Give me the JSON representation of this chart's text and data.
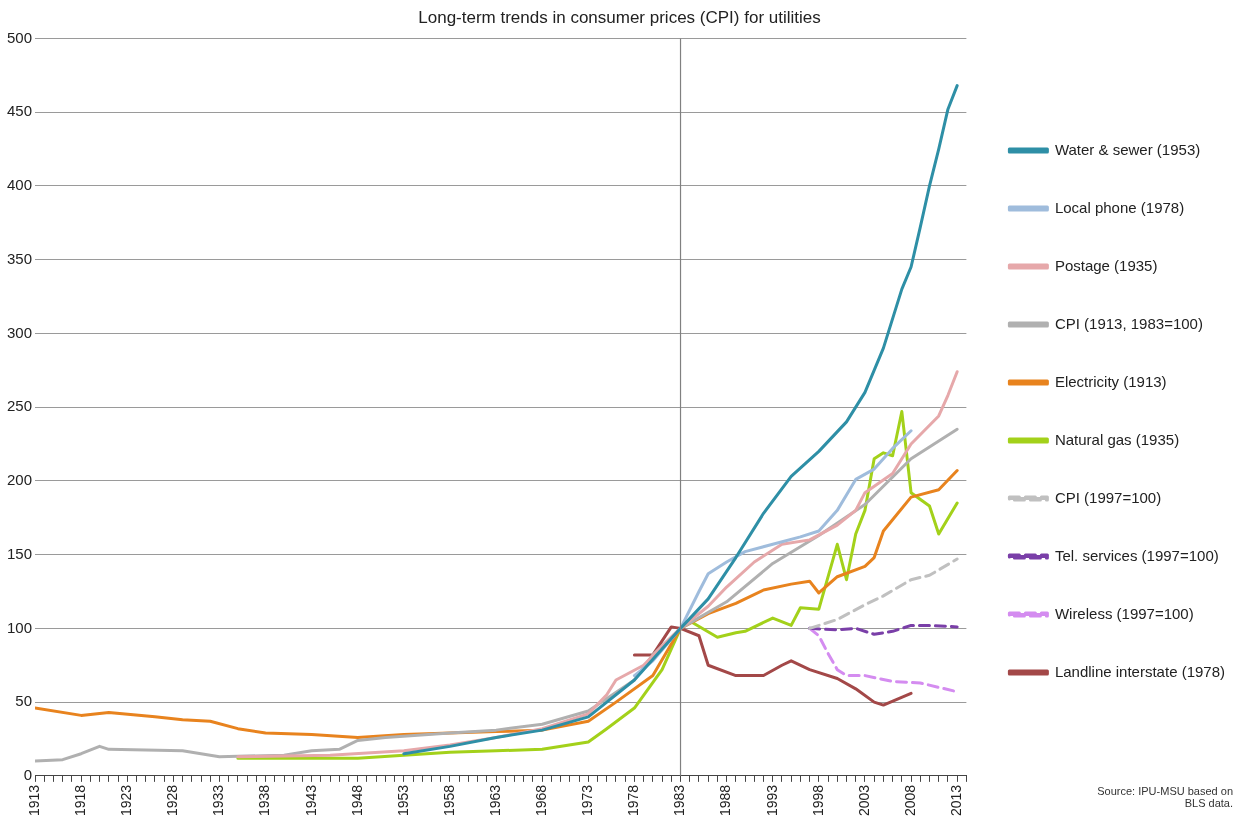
{
  "chart_data": {
    "type": "line",
    "title": "Long-term trends in consumer prices (CPI) for utilities",
    "xlim": [
      1913,
      2014
    ],
    "ylim": [
      0,
      500
    ],
    "yticks": [
      0,
      50,
      100,
      150,
      200,
      250,
      300,
      350,
      400,
      450,
      500
    ],
    "xticks": [
      1913,
      {
        "value": 1914,
        "label": null
      },
      {
        "value": 1915,
        "label": null
      },
      {
        "value": 1916,
        "label": null
      },
      {
        "value": 1917,
        "label": null
      },
      1918,
      {
        "value": 1919,
        "label": null
      },
      {
        "value": 1920,
        "label": null
      },
      {
        "value": 1921,
        "label": null
      },
      {
        "value": 1922,
        "label": null
      },
      1923,
      {
        "value": 1924,
        "label": null
      },
      {
        "value": 1925,
        "label": null
      },
      {
        "value": 1926,
        "label": null
      },
      {
        "value": 1927,
        "label": null
      },
      1928,
      {
        "value": 1929,
        "label": null
      },
      {
        "value": 1930,
        "label": null
      },
      {
        "value": 1931,
        "label": null
      },
      {
        "value": 1932,
        "label": null
      },
      1933,
      {
        "value": 1934,
        "label": null
      },
      {
        "value": 1935,
        "label": null
      },
      {
        "value": 1936,
        "label": null
      },
      {
        "value": 1937,
        "label": null
      },
      1938,
      {
        "value": 1939,
        "label": null
      },
      {
        "value": 1940,
        "label": null
      },
      {
        "value": 1941,
        "label": null
      },
      {
        "value": 1942,
        "label": null
      },
      1943,
      {
        "value": 1944,
        "label": null
      },
      {
        "value": 1945,
        "label": null
      },
      {
        "value": 1946,
        "label": null
      },
      {
        "value": 1947,
        "label": null
      },
      1948,
      {
        "value": 1949,
        "label": null
      },
      {
        "value": 1950,
        "label": null
      },
      {
        "value": 1951,
        "label": null
      },
      {
        "value": 1952,
        "label": null
      },
      1953,
      {
        "value": 1954,
        "label": null
      },
      {
        "value": 1955,
        "label": null
      },
      {
        "value": 1956,
        "label": null
      },
      {
        "value": 1957,
        "label": null
      },
      1958,
      {
        "value": 1959,
        "label": null
      },
      {
        "value": 1960,
        "label": null
      },
      {
        "value": 1961,
        "label": null
      },
      {
        "value": 1962,
        "label": null
      },
      1963,
      {
        "value": 1964,
        "label": null
      },
      {
        "value": 1965,
        "label": null
      },
      {
        "value": 1966,
        "label": null
      },
      {
        "value": 1967,
        "label": null
      },
      1968,
      {
        "value": 1969,
        "label": null
      },
      {
        "value": 1970,
        "label": null
      },
      {
        "value": 1971,
        "label": null
      },
      {
        "value": 1972,
        "label": null
      },
      1973,
      {
        "value": 1974,
        "label": null
      },
      {
        "value": 1975,
        "label": null
      },
      {
        "value": 1976,
        "label": null
      },
      {
        "value": 1977,
        "label": null
      },
      1978,
      {
        "value": 1979,
        "label": null
      },
      {
        "value": 1980,
        "label": null
      },
      {
        "value": 1981,
        "label": null
      },
      {
        "value": 1982,
        "label": null
      },
      1983,
      {
        "value": 1984,
        "label": null
      },
      {
        "value": 1985,
        "label": null
      },
      {
        "value": 1986,
        "label": null
      },
      {
        "value": 1987,
        "label": null
      },
      1988,
      {
        "value": 1989,
        "label": null
      },
      {
        "value": 1990,
        "label": null
      },
      {
        "value": 1991,
        "label": null
      },
      {
        "value": 1992,
        "label": null
      },
      1993,
      {
        "value": 1994,
        "label": null
      },
      {
        "value": 1995,
        "label": null
      },
      {
        "value": 1996,
        "label": null
      },
      {
        "value": 1997,
        "label": null
      },
      1998,
      {
        "value": 1999,
        "label": null
      },
      {
        "value": 2000,
        "label": null
      },
      {
        "value": 2001,
        "label": null
      },
      {
        "value": 2002,
        "label": null
      },
      2003,
      {
        "value": 2004,
        "label": null
      },
      {
        "value": 2005,
        "label": null
      },
      {
        "value": 2006,
        "label": null
      },
      {
        "value": 2007,
        "label": null
      },
      2008,
      {
        "value": 2009,
        "label": null
      },
      {
        "value": 2010,
        "label": null
      },
      {
        "value": 2011,
        "label": null
      },
      {
        "value": 2012,
        "label": null
      },
      2013,
      {
        "value": 2014,
        "label": null
      }
    ],
    "grid": "y",
    "legend": "right",
    "marker": "none",
    "ref_lines": [
      {
        "axis": "x",
        "value": 1983,
        "color": "#808080"
      }
    ],
    "annotations": [
      "Source: IPU-MSU  based on BLS data."
    ],
    "series": [
      {
        "name": "Water & sewer (1953)",
        "color": "#2e8fa6",
        "x": [
          1953,
          1958,
          1963,
          1968,
          1973,
          1978,
          1983,
          1986,
          1989,
          1992,
          1995,
          1998,
          2001,
          2003,
          2005,
          2007,
          2008,
          2009,
          2010,
          2011,
          2012,
          2013
        ],
        "values": [
          15,
          20,
          26,
          31,
          40,
          65,
          100,
          120,
          148,
          178,
          203,
          220,
          240,
          260,
          290,
          330,
          345,
          372,
          400,
          425,
          452,
          468
        ]
      },
      {
        "name": "Local phone (1978)",
        "color": "#9fbcdc",
        "x": [
          1978,
          1980,
          1983,
          1985,
          1986,
          1988,
          1990,
          1993,
          1996,
          1998,
          2000,
          2002,
          2004,
          2006,
          2008
        ],
        "values": [
          68,
          78,
          100,
          125,
          137,
          145,
          152,
          157,
          162,
          166,
          180,
          201,
          208,
          222,
          234
        ]
      },
      {
        "name": "Postage (1935)",
        "color": "#e6a8aa",
        "x": [
          1935,
          1945,
          1953,
          1958,
          1963,
          1968,
          1973,
          1975,
          1976,
          1979,
          1981,
          1983,
          1986,
          1988,
          1991,
          1994,
          1997,
          2000,
          2002,
          2003,
          2006,
          2008,
          2011,
          2012,
          2013
        ],
        "values": [
          13,
          14,
          17,
          21,
          26,
          32,
          42,
          55,
          65,
          75,
          88,
          100,
          115,
          128,
          145,
          157,
          160,
          170,
          180,
          192,
          205,
          225,
          244,
          258,
          274
        ]
      },
      {
        "name": "CPI (1913, 1983=100)",
        "color": "#b0b0b0",
        "x": [
          1913,
          1916,
          1918,
          1920,
          1921,
          1929,
          1933,
          1940,
          1943,
          1946,
          1948,
          1951,
          1958,
          1963,
          1968,
          1973,
          1978,
          1980,
          1983,
          1988,
          1993,
          1998,
          2003,
          2008,
          2013
        ],
        "values": [
          10,
          11,
          15,
          20,
          18,
          17,
          13,
          14,
          17,
          18,
          24,
          26,
          29,
          31,
          35,
          44,
          65,
          82,
          100,
          118,
          144,
          163,
          184,
          215,
          235
        ]
      },
      {
        "name": "Electricity (1913)",
        "color": "#e8831e",
        "x": [
          1913,
          1918,
          1921,
          1926,
          1929,
          1932,
          1935,
          1938,
          1943,
          1948,
          1953,
          1963,
          1968,
          1973,
          1976,
          1980,
          1983,
          1986,
          1989,
          1992,
          1995,
          1997,
          1998,
          2000,
          2003,
          2004,
          2005,
          2008,
          2011,
          2013
        ],
        "values": [
          46,
          41,
          43,
          40,
          38,
          37,
          32,
          29,
          28,
          26,
          28,
          30,
          31,
          37,
          50,
          68,
          100,
          110,
          117,
          126,
          130,
          132,
          124,
          135,
          142,
          148,
          166,
          189,
          194,
          207
        ]
      },
      {
        "name": "Natural gas (1935)",
        "color": "#a3d11a",
        "x": [
          1935,
          1948,
          1953,
          1958,
          1963,
          1968,
          1973,
          1975,
          1978,
          1981,
          1983,
          1984,
          1987,
          1989,
          1990,
          1993,
          1995,
          1996,
          1998,
          2000,
          2001,
          2002,
          2003,
          2004,
          2005,
          2006,
          2007,
          2008,
          2010,
          2011,
          2013
        ],
        "values": [
          12,
          12,
          14,
          16,
          17,
          18,
          23,
          32,
          46,
          72,
          100,
          105,
          94,
          97,
          98,
          107,
          102,
          114,
          113,
          157,
          133,
          164,
          180,
          215,
          219,
          217,
          247,
          192,
          183,
          164,
          185
        ]
      },
      {
        "name": "CPI (1997=100)",
        "color": "#c0c0c0",
        "line_style": "dashed",
        "x": [
          1997,
          2000,
          2003,
          2005,
          2008,
          2010,
          2013
        ],
        "values": [
          100,
          106,
          116,
          122,
          133,
          136,
          147
        ]
      },
      {
        "name": "Tel. services (1997=100)",
        "color": "#7a3fa8",
        "line_style": "dashed",
        "x": [
          1997,
          2000,
          2002,
          2004,
          2006,
          2008,
          2010,
          2013
        ],
        "values": [
          100,
          99,
          100,
          96,
          98,
          102,
          102,
          101
        ]
      },
      {
        "name": "Wireless (1997=100)",
        "color": "#d48cf0",
        "line_style": "dashed",
        "x": [
          1997,
          1998,
          1999,
          2000,
          2001,
          2003,
          2006,
          2009,
          2011,
          2013
        ],
        "values": [
          100,
          95,
          83,
          72,
          68,
          68,
          64,
          63,
          60,
          57
        ]
      },
      {
        "name": "Landline interstate (1978)",
        "color": "#a34848",
        "x": [
          1978,
          1980,
          1982,
          1983,
          1985,
          1986,
          1989,
          1992,
          1994,
          1995,
          1997,
          2000,
          2002,
          2004,
          2005,
          2008
        ],
        "values": [
          82,
          82,
          101,
          100,
          95,
          75,
          68,
          68,
          75,
          78,
          72,
          66,
          59,
          50,
          48,
          56
        ]
      }
    ]
  }
}
